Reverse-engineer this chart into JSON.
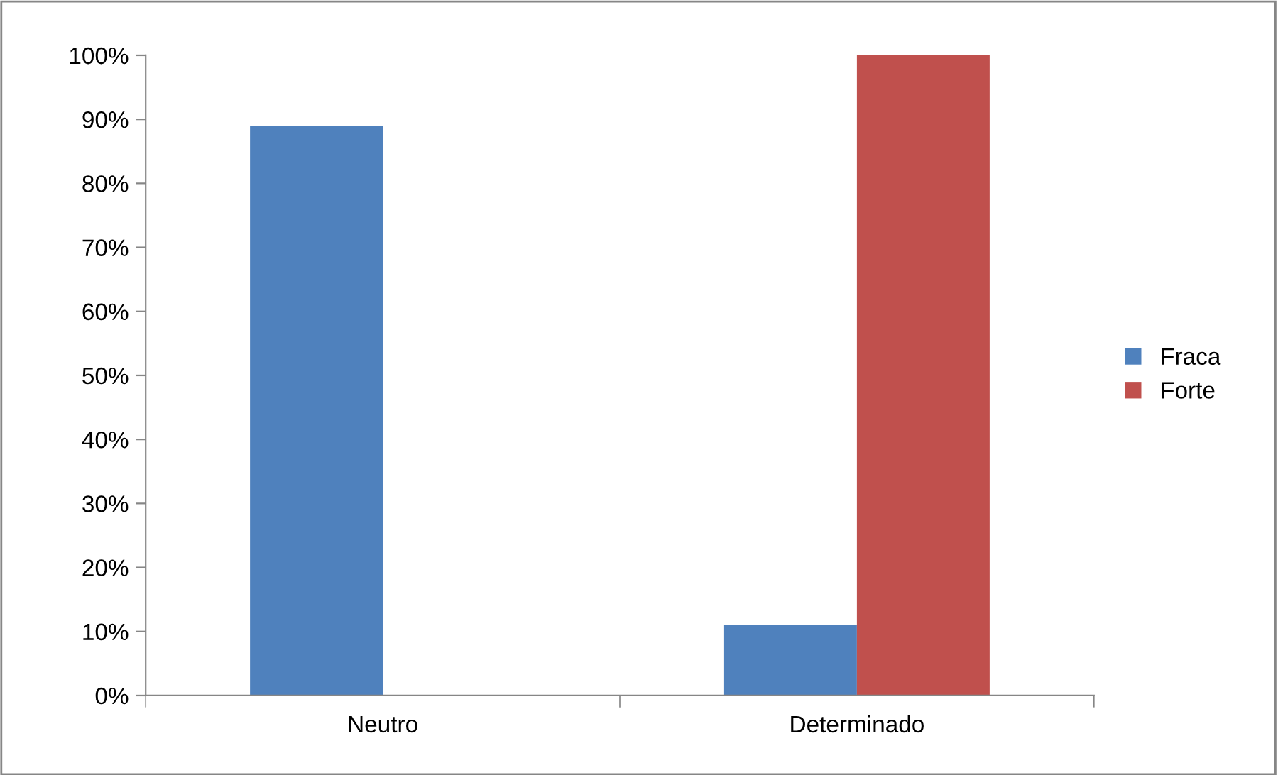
{
  "chart_data": {
    "type": "bar",
    "categories": [
      "Neutro",
      "Determinado"
    ],
    "series": [
      {
        "name": "Fraca",
        "color": "#4f81bd",
        "values": [
          89,
          11
        ]
      },
      {
        "name": "Forte",
        "color": "#c0504d",
        "values": [
          0,
          100
        ]
      }
    ],
    "ylim": [
      0,
      100
    ],
    "yticks": [
      {
        "value": 0,
        "label": "0%"
      },
      {
        "value": 10,
        "label": "10%"
      },
      {
        "value": 20,
        "label": "20%"
      },
      {
        "value": 30,
        "label": "30%"
      },
      {
        "value": 40,
        "label": "40%"
      },
      {
        "value": 50,
        "label": "50%"
      },
      {
        "value": 60,
        "label": "60%"
      },
      {
        "value": 70,
        "label": "70%"
      },
      {
        "value": 80,
        "label": "80%"
      },
      {
        "value": 90,
        "label": "90%"
      },
      {
        "value": 100,
        "label": "100%"
      }
    ],
    "grid": false,
    "legend": "right"
  }
}
